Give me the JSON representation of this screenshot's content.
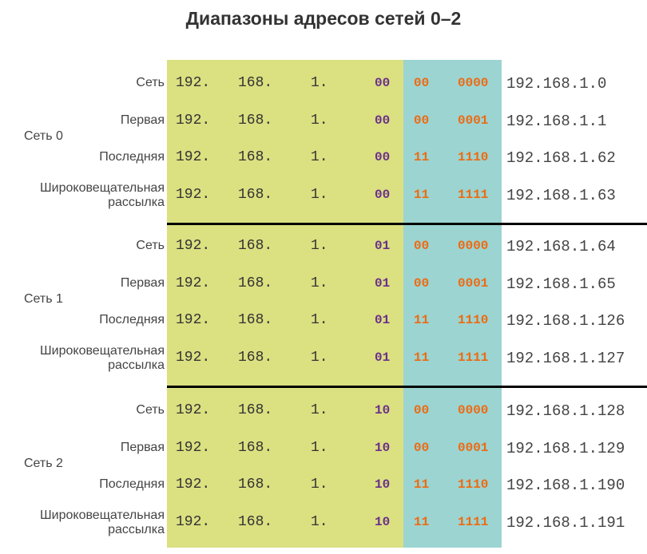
{
  "title": "Диапазоны адресов сетей 0–2",
  "colors": {
    "network_bg": "#dbe081",
    "host_bg": "#9bd4d1",
    "subnet_bits": "#6a2f8a",
    "host_bits": "#ee6a12"
  },
  "networks": [
    {
      "label": "Сеть 0",
      "rows": [
        {
          "type": "Сеть",
          "o1": "192.",
          "o2": "168.",
          "o3": "1.",
          "sub": "00",
          "h1": "00",
          "h2": "0000",
          "dec": "192.168.1.0"
        },
        {
          "type": "Первая",
          "o1": "192.",
          "o2": "168.",
          "o3": "1.",
          "sub": "00",
          "h1": "00",
          "h2": "0001",
          "dec": "192.168.1.1"
        },
        {
          "type": "Последняя",
          "o1": "192.",
          "o2": "168.",
          "o3": "1.",
          "sub": "00",
          "h1": "11",
          "h2": "1110",
          "dec": "192.168.1.62"
        },
        {
          "type": "Широковещательная",
          "type2": "рассылка",
          "o1": "192.",
          "o2": "168.",
          "o3": "1.",
          "sub": "00",
          "h1": "11",
          "h2": "1111",
          "dec": "192.168.1.63"
        }
      ]
    },
    {
      "label": "Сеть 1",
      "rows": [
        {
          "type": "Сеть",
          "o1": "192.",
          "o2": "168.",
          "o3": "1.",
          "sub": "01",
          "h1": "00",
          "h2": "0000",
          "dec": "192.168.1.64"
        },
        {
          "type": "Первая",
          "o1": "192.",
          "o2": "168.",
          "o3": "1.",
          "sub": "01",
          "h1": "00",
          "h2": "0001",
          "dec": "192.168.1.65"
        },
        {
          "type": "Последняя",
          "o1": "192.",
          "o2": "168.",
          "o3": "1.",
          "sub": "01",
          "h1": "11",
          "h2": "1110",
          "dec": "192.168.1.126"
        },
        {
          "type": "Широковещательная",
          "type2": "рассылка",
          "o1": "192.",
          "o2": "168.",
          "o3": "1.",
          "sub": "01",
          "h1": "11",
          "h2": "1111",
          "dec": "192.168.1.127"
        }
      ]
    },
    {
      "label": "Сеть 2",
      "rows": [
        {
          "type": "Сеть",
          "o1": "192.",
          "o2": "168.",
          "o3": "1.",
          "sub": "10",
          "h1": "00",
          "h2": "0000",
          "dec": "192.168.1.128"
        },
        {
          "type": "Первая",
          "o1": "192.",
          "o2": "168.",
          "o3": "1.",
          "sub": "10",
          "h1": "00",
          "h2": "0001",
          "dec": "192.168.1.129"
        },
        {
          "type": "Последняя",
          "o1": "192.",
          "o2": "168.",
          "o3": "1.",
          "sub": "10",
          "h1": "11",
          "h2": "1110",
          "dec": "192.168.1.190"
        },
        {
          "type": "Широковещательная",
          "type2": "рассылка",
          "o1": "192.",
          "o2": "168.",
          "o3": "1.",
          "sub": "10",
          "h1": "11",
          "h2": "1111",
          "dec": "192.168.1.191"
        }
      ]
    }
  ]
}
